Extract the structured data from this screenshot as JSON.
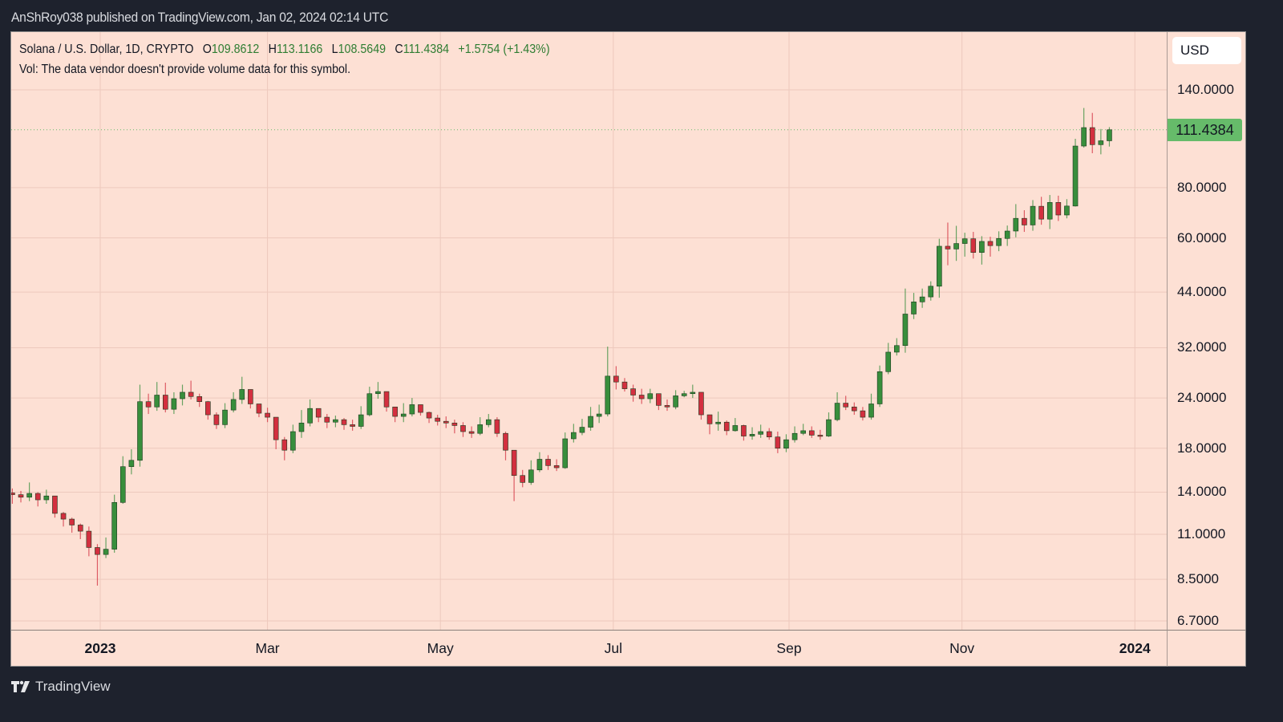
{
  "header": {
    "title": "AnShRoy038 published on TradingView.com, Jan 02, 2024 02:14 UTC"
  },
  "legend": {
    "symbol": "Solana / U.S. Dollar, 1D, CRYPTO",
    "open_label": "O",
    "open": "109.8612",
    "high_label": "H",
    "high": "113.1166",
    "low_label": "L",
    "low": "108.5649",
    "close_label": "C",
    "close": "111.4384",
    "change": "+1.5754 (+1.43%)",
    "volume_note": "Vol: The data vendor doesn't provide volume data for this symbol."
  },
  "price_axis": {
    "currency_button": "USD",
    "ticks": [
      "140.0000",
      "80.0000",
      "60.0000",
      "44.0000",
      "32.0000",
      "24.0000",
      "18.0000",
      "14.0000",
      "11.0000",
      "8.5000",
      "6.7000"
    ],
    "last_price": "111.4384"
  },
  "time_axis": {
    "ticks": [
      {
        "label": "2023",
        "bold": true
      },
      {
        "label": "Mar",
        "bold": false
      },
      {
        "label": "May",
        "bold": false
      },
      {
        "label": "Jul",
        "bold": false
      },
      {
        "label": "Sep",
        "bold": false
      },
      {
        "label": "Nov",
        "bold": false
      },
      {
        "label": "2024",
        "bold": true
      }
    ]
  },
  "colors": {
    "background": "#fde0d4",
    "frame": "#1e222d",
    "up": "#388e3c",
    "down": "#d32f3f",
    "grid": "#edc9bd",
    "last_price_bg": "#66bb6a"
  },
  "footer": {
    "brand": "TradingView"
  },
  "chart_data": {
    "type": "candlestick",
    "title": "Solana / U.S. Dollar, 1D, CRYPTO",
    "scale": "log",
    "ylim": [
      6.7,
      150
    ],
    "y_ticks": [
      6.7,
      8.5,
      11,
      14,
      18,
      24,
      32,
      44,
      60,
      80,
      140
    ],
    "x_ticks": [
      "2023",
      "Mar",
      "May",
      "Jul",
      "Sep",
      "Nov",
      "2024"
    ],
    "last_price": 111.4384,
    "candles_every_n_days": 3,
    "start_date": "2022-12-01",
    "closes": [
      13.8,
      13.6,
      13.9,
      13.4,
      13.7,
      12.4,
      12.0,
      11.6,
      11.2,
      10.2,
      9.8,
      10.1,
      13.2,
      16.2,
      16.8,
      23.5,
      22.8,
      24.4,
      22.5,
      23.9,
      24.8,
      24.2,
      23.5,
      21.8,
      20.6,
      22.4,
      23.8,
      25.2,
      23.2,
      22.0,
      21.5,
      18.9,
      17.8,
      19.8,
      20.8,
      22.6,
      21.5,
      20.9,
      21.2,
      20.6,
      20.4,
      21.8,
      24.6,
      24.9,
      22.8,
      21.6,
      21.9,
      23.1,
      22.1,
      21.4,
      21.0,
      20.8,
      20.5,
      19.8,
      19.6,
      20.6,
      21.2,
      19.6,
      17.8,
      15.4,
      14.8,
      15.9,
      16.9,
      16.3,
      16.1,
      19.0,
      19.7,
      20.3,
      21.6,
      21.9,
      27.2,
      26.3,
      25.3,
      24.4,
      23.9,
      24.6,
      23.0,
      22.8,
      24.3,
      24.6,
      24.8,
      21.8,
      20.7,
      20.9,
      19.9,
      20.5,
      19.3,
      19.5,
      19.8,
      19.2,
      18.0,
      18.9,
      19.6,
      19.9,
      19.4,
      19.3,
      21.2,
      23.3,
      22.8,
      22.3,
      21.5,
      23.2,
      27.9,
      31.2,
      32.4,
      38.8,
      41.6,
      42.8,
      45.5,
      57.2,
      56.3,
      58.1,
      59.7,
      55.2,
      58.8,
      57.4,
      59.8,
      62.4,
      67.1,
      64.6,
      71.9,
      66.8,
      73.5,
      68.4,
      72.0,
      101.5,
      112.8,
      102.3,
      104.6,
      111.4
    ],
    "highs": [
      14.3,
      14.1,
      14.8,
      14.0,
      14.2,
      12.9,
      12.5,
      12.1,
      11.7,
      11.5,
      10.4,
      10.8,
      13.8,
      17.2,
      17.9,
      25.9,
      24.6,
      26.3,
      26.2,
      24.8,
      25.9,
      26.5,
      24.6,
      23.6,
      22.1,
      23.3,
      24.8,
      27.1,
      25.1,
      23.2,
      22.7,
      21.2,
      19.2,
      20.6,
      22.4,
      23.8,
      22.4,
      21.9,
      21.7,
      21.4,
      21.2,
      22.9,
      25.6,
      26.3,
      24.6,
      22.6,
      23.3,
      24.0,
      23.1,
      22.2,
      21.8,
      21.6,
      21.2,
      20.9,
      20.4,
      21.5,
      21.9,
      21.5,
      19.8,
      16.9,
      15.9,
      16.8,
      17.6,
      17.3,
      16.9,
      19.7,
      20.7,
      21.3,
      22.8,
      23.1,
      32.2,
      28.8,
      26.9,
      25.9,
      25.3,
      25.3,
      24.6,
      23.8,
      25.1,
      25.0,
      25.9,
      24.3,
      21.8,
      22.2,
      21.1,
      21.4,
      20.6,
      20.3,
      20.6,
      20.2,
      19.8,
      19.5,
      20.4,
      20.7,
      20.4,
      20.0,
      22.1,
      24.8,
      24.3,
      23.4,
      22.8,
      24.6,
      28.9,
      32.9,
      33.8,
      44.9,
      43.8,
      44.9,
      46.8,
      59.7,
      65.5,
      64.3,
      61.8,
      62.1,
      60.6,
      60.4,
      62.3,
      64.4,
      72.8,
      70.3,
      74.5,
      75.9,
      76.7,
      76.4,
      74.9,
      105.8,
      126.2,
      122.7,
      111.9,
      113.1
    ],
    "lows": [
      13.1,
      13.2,
      13.3,
      12.9,
      13.1,
      12.1,
      11.5,
      11.1,
      10.7,
      9.7,
      8.2,
      9.6,
      9.9,
      13.1,
      15.5,
      16.2,
      21.9,
      22.3,
      22.1,
      21.9,
      23.0,
      23.8,
      22.8,
      21.2,
      20.1,
      20.2,
      22.1,
      23.2,
      22.6,
      21.5,
      20.9,
      17.9,
      16.8,
      17.5,
      19.1,
      20.4,
      20.9,
      20.2,
      20.3,
      20.0,
      19.9,
      20.1,
      21.6,
      23.9,
      22.2,
      20.9,
      20.9,
      21.6,
      21.7,
      20.8,
      20.5,
      20.2,
      19.6,
      19.2,
      19.1,
      19.4,
      20.3,
      19.2,
      16.8,
      13.3,
      14.4,
      14.6,
      15.7,
      15.9,
      15.8,
      16.0,
      18.6,
      19.4,
      19.9,
      20.8,
      21.6,
      25.2,
      24.9,
      23.5,
      23.2,
      23.3,
      22.4,
      22.3,
      22.5,
      24.1,
      24.0,
      21.2,
      19.5,
      19.9,
      19.4,
      19.8,
      18.8,
      18.9,
      19.1,
      18.9,
      17.5,
      17.6,
      18.6,
      19.4,
      19.1,
      18.9,
      19.2,
      21.0,
      22.4,
      21.8,
      21.1,
      21.2,
      22.8,
      27.5,
      30.6,
      31.1,
      37.7,
      40.2,
      41.9,
      42.6,
      51.3,
      52.6,
      53.9,
      53.3,
      51.5,
      53.9,
      55.6,
      57.3,
      60.2,
      62.1,
      62.5,
      64.7,
      63.1,
      66.1,
      67.1,
      71.8,
      100.6,
      97.4,
      96.8,
      101.2,
      108.6
    ]
  }
}
